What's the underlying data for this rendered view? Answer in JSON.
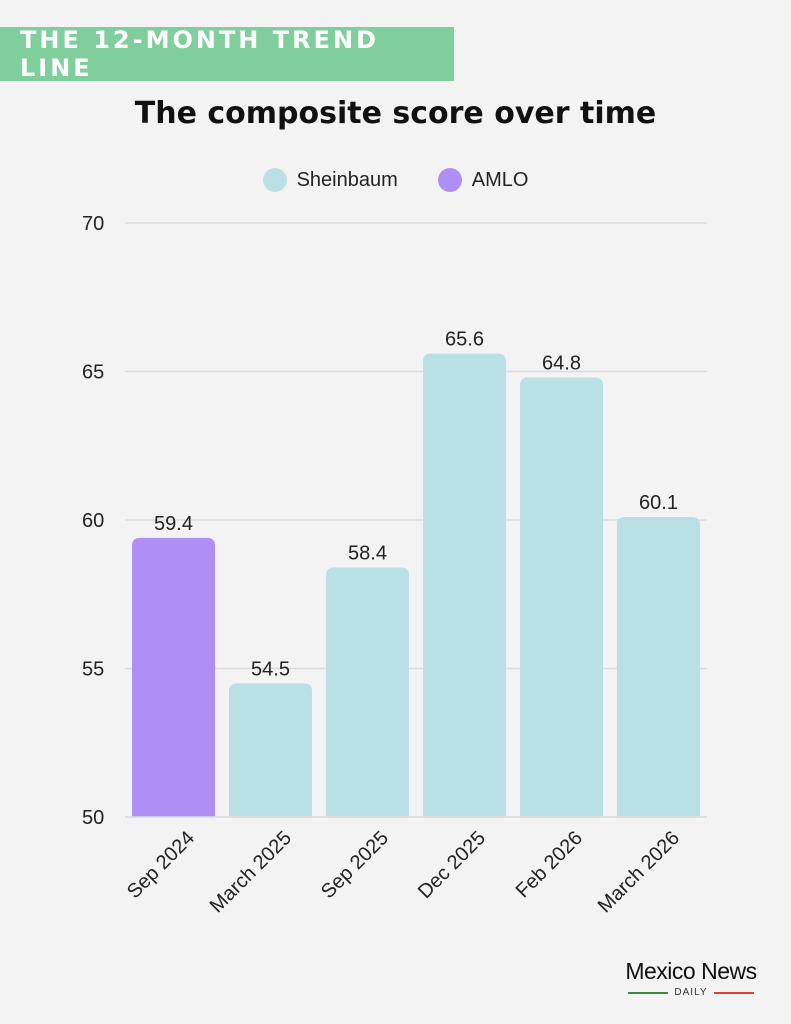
{
  "banner": {
    "text": "THE 12-MONTH TREND LINE"
  },
  "colors": {
    "banner_bg": "#7fce9c",
    "sheinbaum": "#b8e0e5",
    "amlo": "#af8ff3",
    "grid": "#dcdcdc",
    "logo_green": "#3a8a3a",
    "logo_red": "#d9453a"
  },
  "legend": [
    {
      "label": "Sheinbaum",
      "color": "#b8e0e5"
    },
    {
      "label": "AMLO",
      "color": "#af8ff3"
    }
  ],
  "logo": {
    "main": "Mexico News",
    "sub": "DAILY"
  },
  "chart_data": {
    "type": "bar",
    "title": "The composite score over time",
    "categories": [
      "Sep 2024",
      "March 2025",
      "Sep 2025",
      "Dec 2025",
      "Feb 2026",
      "March 2026"
    ],
    "values": [
      59.4,
      54.5,
      58.4,
      65.6,
      64.8,
      60.1
    ],
    "value_labels": [
      "59.4",
      "54.5",
      "58.4",
      "65.6",
      "64.8",
      "60.1"
    ],
    "series_of_bar": [
      "AMLO",
      "Sheinbaum",
      "Sheinbaum",
      "Sheinbaum",
      "Sheinbaum",
      "Sheinbaum"
    ],
    "ylim": [
      50,
      70
    ],
    "yticks": [
      50,
      55,
      60,
      65,
      70
    ],
    "ytick_labels": [
      "50",
      "55",
      "60",
      "65",
      "70"
    ],
    "xlabel": "",
    "ylabel": "",
    "grid": true,
    "legend_position": "top-center"
  }
}
